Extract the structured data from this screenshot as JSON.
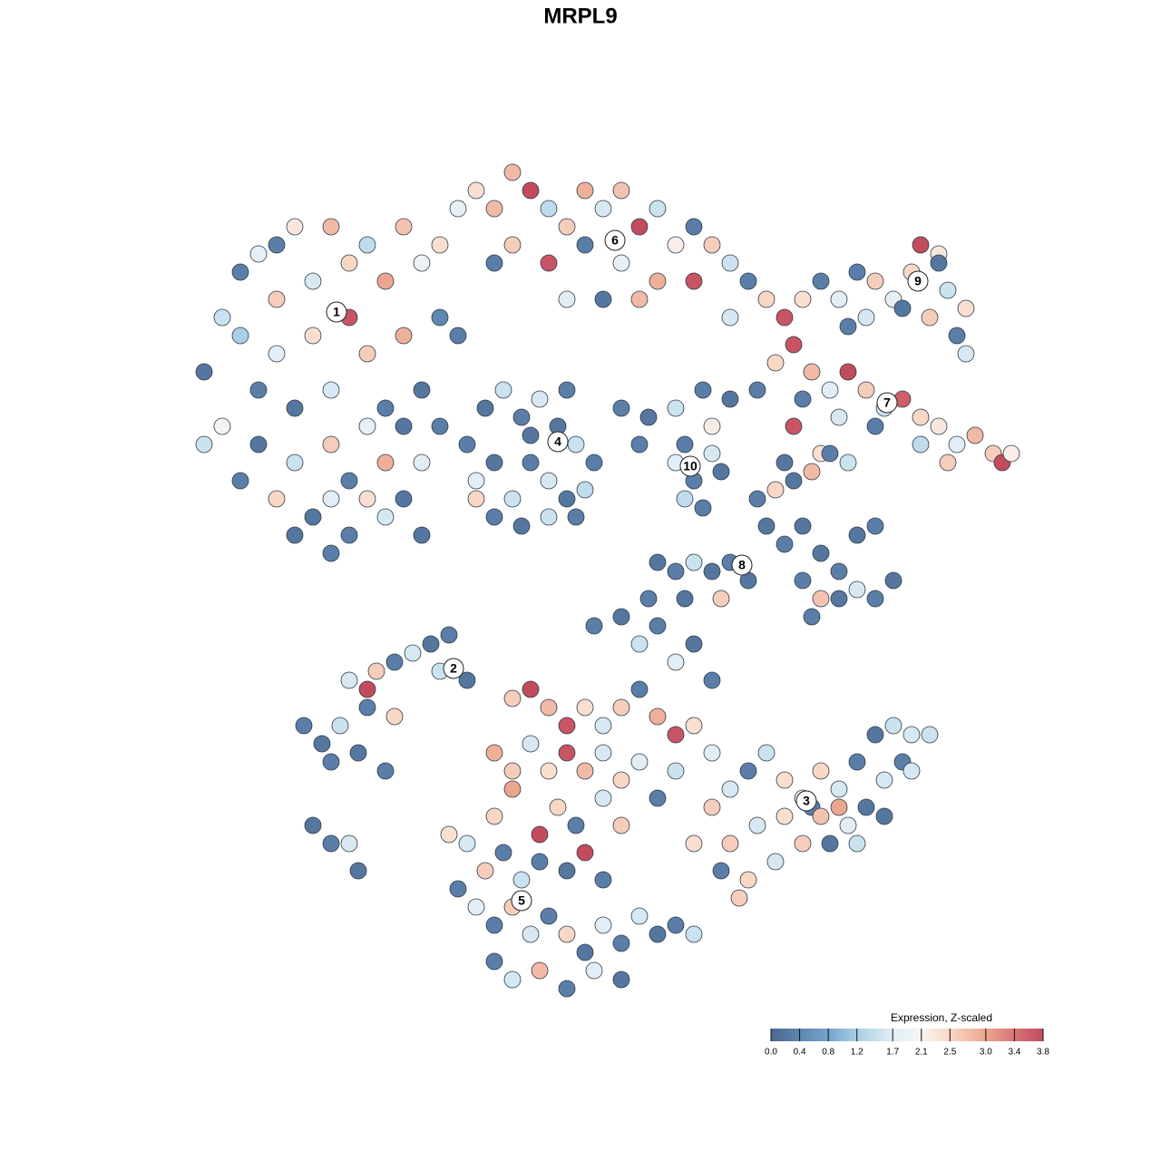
{
  "chart_data": {
    "type": "scatter",
    "title": "MRPL9",
    "xlim": [
      -51.5,
      51.5
    ],
    "ylim": [
      -48,
      48
    ],
    "x": [
      -44,
      -42,
      -40,
      -38,
      -36,
      -34,
      -32,
      -30,
      -28,
      -26,
      -24,
      -22,
      -20,
      -18,
      -40,
      -38,
      -36,
      -34,
      -32,
      -30,
      -28,
      -26,
      -24,
      -22,
      -20,
      -18,
      -16,
      -42,
      -38,
      -34,
      -30,
      -28,
      -26,
      -24,
      -22,
      -20,
      -32,
      -30,
      -28,
      -26,
      -24,
      -34,
      -30,
      -22,
      -36,
      -44,
      -40,
      -20,
      -18,
      -36,
      -14,
      -12,
      -10,
      -8,
      -6,
      -4,
      -2,
      0,
      2,
      4,
      6,
      8,
      10,
      12,
      14,
      16,
      -16,
      -10,
      -6,
      -2,
      2,
      6,
      10,
      -12,
      0,
      4,
      -4,
      14,
      18,
      20,
      22,
      24,
      26,
      28,
      30,
      32,
      34,
      35,
      37,
      38,
      40,
      39,
      36,
      33,
      29,
      27,
      40,
      37,
      19,
      21,
      23,
      25,
      27,
      29,
      31,
      33,
      35,
      37,
      39,
      41,
      43,
      44,
      45,
      38,
      35,
      30,
      26,
      22,
      21,
      17,
      20,
      24,
      -15,
      -13,
      -11,
      -9,
      -7,
      -5,
      -3,
      -1,
      -14,
      -12,
      -10,
      -8,
      -6,
      -4,
      -2,
      -12,
      -9,
      -6,
      -3,
      -8,
      -14,
      -4,
      2,
      5,
      8,
      11,
      14,
      4,
      9,
      12,
      8,
      10,
      12,
      9,
      11,
      13,
      17,
      19,
      21,
      23,
      25,
      27,
      18,
      20,
      22,
      24,
      26,
      28,
      30,
      22,
      24,
      26,
      28,
      30,
      32,
      23,
      6,
      8,
      10,
      12,
      14,
      16,
      5,
      9,
      13,
      -33,
      -31,
      -29,
      -30,
      -27,
      -26,
      -28,
      -25,
      -26,
      -23,
      -21,
      -19,
      -17,
      -18,
      -15,
      -23,
      -24,
      -32,
      -30,
      -28,
      -27,
      -10,
      -8,
      -6,
      -4,
      -2,
      0,
      2,
      4,
      6,
      8,
      10,
      -12,
      -10,
      -8,
      -6,
      -4,
      -2,
      0,
      2,
      4,
      6,
      8,
      -12,
      -10,
      -7,
      -5,
      -3,
      0,
      2,
      -1,
      2,
      4,
      6,
      8,
      10,
      12,
      -15,
      -13,
      -11,
      -9,
      -7,
      -4,
      -2,
      0,
      -14,
      -12,
      -10,
      -8,
      -6,
      -4,
      -2,
      0,
      2,
      4,
      6,
      8,
      10,
      -12,
      -10,
      -7,
      -4,
      -1,
      2,
      -16,
      -17,
      12,
      14,
      16,
      18,
      20,
      22,
      24,
      26,
      28,
      30,
      32,
      34,
      36,
      33,
      31,
      29,
      27,
      25,
      22,
      19,
      16,
      13,
      14,
      17,
      20,
      23,
      26,
      28,
      24,
      15,
      12,
      10,
      31,
      34
    ],
    "y": [
      22,
      28,
      33,
      35,
      30,
      38,
      32,
      38,
      34,
      36,
      32,
      38,
      34,
      36,
      26,
      20,
      24,
      18,
      26,
      20,
      28,
      24,
      18,
      26,
      20,
      28,
      26,
      16,
      14,
      12,
      14,
      10,
      16,
      12,
      16,
      12,
      6,
      8,
      4,
      8,
      6,
      4,
      2,
      8,
      8,
      14,
      10,
      4,
      16,
      36,
      42,
      40,
      44,
      42,
      40,
      38,
      42,
      40,
      42,
      38,
      40,
      36,
      38,
      36,
      34,
      32,
      40,
      36,
      34,
      36,
      34,
      32,
      32,
      34,
      30,
      30,
      30,
      28,
      30,
      28,
      30,
      32,
      30,
      33,
      32,
      30,
      33,
      36,
      35,
      31,
      29,
      26,
      28,
      29,
      28,
      27,
      24,
      34,
      23,
      25,
      22,
      20,
      22,
      20,
      18,
      19,
      17,
      16,
      14,
      15,
      13,
      12,
      13,
      12,
      14,
      16,
      17,
      19,
      16,
      20,
      12,
      13,
      14,
      18,
      20,
      17,
      19,
      16,
      14,
      12,
      10,
      12,
      8,
      12,
      10,
      8,
      9,
      6,
      5,
      6,
      6,
      15,
      8,
      20,
      18,
      17,
      18,
      20,
      19,
      14,
      14,
      16,
      12,
      10,
      13,
      8,
      7,
      11,
      8,
      9,
      10,
      11,
      13,
      12,
      5,
      3,
      5,
      2,
      0,
      4,
      5,
      -1,
      -3,
      -3,
      -2,
      -3,
      -1,
      -5,
      1,
      0,
      1,
      0,
      1,
      -1,
      -3,
      -3,
      -3,
      -17,
      -19,
      -17,
      -21,
      -20,
      -15,
      -12,
      -11,
      -13,
      -10,
      -9,
      -8,
      -7,
      -11,
      -12,
      -16,
      -22,
      -28,
      -30,
      -30,
      -33,
      -14,
      -13,
      -15,
      -17,
      -15,
      -17,
      -15,
      -13,
      -16,
      -18,
      -17,
      -20,
      -22,
      -19,
      -22,
      -20,
      -22,
      -20,
      -23,
      -21,
      -25,
      -22,
      -27,
      -24,
      -29,
      -26,
      -28,
      -25,
      -28,
      -6,
      -5,
      -8,
      -6,
      -10,
      -8,
      -12,
      -30,
      -33,
      -31,
      -34,
      -32,
      -33,
      -31,
      -34,
      -37,
      -39,
      -37,
      -40,
      -38,
      -40,
      -42,
      -39,
      -41,
      -38,
      -40,
      -39,
      -40,
      -43,
      -45,
      -44,
      -46,
      -44,
      -45,
      -35,
      -29,
      -26,
      -24,
      -22,
      -20,
      -23,
      -25,
      -22,
      -24,
      -21,
      -18,
      -17,
      -18,
      -18,
      -21,
      -23,
      -26,
      -28,
      -30,
      -30,
      -32,
      -34,
      -33,
      -30,
      -28,
      -27,
      -26,
      -26,
      -30,
      -27,
      -36,
      -20,
      -30,
      -27,
      -22
    ],
    "values": [
      0.2,
      1.5,
      0.3,
      1.8,
      2.6,
      2.3,
      1.6,
      2.8,
      2.5,
      1.4,
      3.0,
      2.7,
      1.9,
      2.4,
      1.2,
      0.3,
      1.7,
      0.2,
      2.4,
      1.6,
      3.7,
      2.6,
      0.3,
      2.9,
      0.2,
      0.4,
      0.3,
      2.0,
      0.2,
      1.5,
      2.6,
      0.3,
      1.8,
      2.9,
      0.2,
      1.7,
      0.2,
      1.7,
      0.3,
      2.4,
      1.6,
      0.2,
      0.3,
      0.2,
      2.5,
      1.5,
      0.3,
      0.2,
      0.3,
      0.3,
      2.4,
      2.8,
      2.8,
      3.8,
      1.4,
      2.6,
      2.9,
      1.6,
      2.7,
      3.8,
      1.5,
      2.2,
      0.3,
      2.6,
      1.5,
      0.3,
      1.8,
      2.6,
      3.7,
      0.3,
      1.8,
      2.9,
      3.7,
      0.3,
      0.2,
      2.8,
      1.7,
      1.6,
      2.5,
      3.7,
      2.4,
      0.3,
      1.7,
      0.3,
      2.6,
      1.8,
      2.5,
      3.8,
      2.3,
      1.5,
      2.4,
      0.3,
      2.6,
      0.2,
      1.6,
      0.3,
      1.6,
      0.2,
      2.5,
      3.7,
      2.8,
      1.7,
      3.8,
      2.6,
      1.5,
      3.6,
      2.5,
      2.3,
      1.7,
      2.8,
      2.6,
      3.8,
      2.2,
      2.6,
      1.4,
      0.3,
      1.6,
      0.3,
      3.7,
      0.3,
      0.2,
      2.4,
      0.3,
      0.2,
      1.5,
      0.3,
      1.6,
      0.2,
      1.5,
      0.3,
      1.7,
      0.2,
      1.5,
      0.3,
      1.6,
      0.2,
      1.4,
      0.3,
      0.2,
      1.5,
      0.3,
      0.2,
      2.5,
      0.3,
      0.3,
      0.2,
      1.5,
      0.3,
      0.2,
      0.3,
      0.3,
      2.2,
      1.7,
      0.3,
      1.6,
      1.4,
      0.3,
      0.2,
      0.3,
      2.5,
      0.2,
      2.8,
      0.3,
      1.5,
      0.2,
      0.3,
      0.2,
      0.2,
      0.3,
      0.2,
      0.3,
      0.3,
      2.7,
      0.2,
      1.6,
      0.3,
      0.2,
      0.3,
      0.2,
      0.3,
      1.5,
      0.2,
      0.3,
      0.2,
      0.3,
      0.2,
      2.6,
      0.3,
      0.2,
      1.5,
      0.3,
      0.2,
      0.3,
      1.6,
      2.6,
      3.8,
      0.3,
      1.6,
      0.2,
      0.3,
      1.5,
      0.2,
      2.5,
      0.3,
      0.2,
      0.3,
      1.6,
      0.2,
      2.6,
      3.8,
      2.8,
      3.7,
      2.4,
      1.6,
      2.6,
      0.3,
      2.9,
      3.7,
      2.4,
      2.9,
      2.6,
      1.6,
      2.4,
      3.7,
      2.8,
      1.6,
      2.5,
      1.7,
      0.3,
      1.5,
      2.5,
      3.0,
      3.8,
      2.5,
      0.3,
      1.6,
      2.6,
      0.3,
      0.2,
      1.5,
      0.3,
      1.7,
      0.2,
      0.3,
      1.6,
      2.6,
      0.3,
      1.5,
      0.3,
      0.2,
      3.8,
      0.3,
      1.7,
      0.3,
      2.6,
      1.6,
      0.3,
      2.5,
      0.2,
      1.7,
      0.3,
      1.6,
      0.2,
      0.3,
      1.5,
      0.3,
      1.6,
      2.8,
      0.3,
      1.7,
      0.2,
      0.3,
      2.4,
      2.6,
      1.6,
      0.3,
      1.5,
      2.4,
      1.7,
      2.5,
      1.6,
      0.3,
      0.2,
      1.5,
      1.6,
      1.5,
      0.3,
      1.6,
      0.2,
      1.7,
      0.2,
      2.6,
      1.6,
      2.5,
      0.3,
      2.6,
      1.6,
      2.4,
      0.3,
      3.0,
      1.5,
      2.7,
      2.6,
      1.7,
      2.4,
      0.2,
      1.6
    ],
    "annotations": [
      {
        "text": "1",
        "x": -29.4,
        "y": 28.6
      },
      {
        "text": "2",
        "x": -16.5,
        "y": -10.7
      },
      {
        "text": "3",
        "x": 22.4,
        "y": -25.3
      },
      {
        "text": "4",
        "x": -5,
        "y": 14.3
      },
      {
        "text": "5",
        "x": -9,
        "y": -36.3
      },
      {
        "text": "6",
        "x": 1.3,
        "y": 36.5
      },
      {
        "text": "7",
        "x": 31.3,
        "y": 18.6
      },
      {
        "text": "8",
        "x": 15.3,
        "y": 0.7
      },
      {
        "text": "9",
        "x": 34.7,
        "y": 32
      },
      {
        "text": "10",
        "x": 9.6,
        "y": 11.6
      }
    ],
    "colorbar": {
      "label": "Expression, Z-scaled",
      "clim": [
        0,
        3.8
      ],
      "ticks": [
        {
          "value": 0,
          "label": "0.0"
        },
        0.4,
        0.8,
        1.2,
        1.7,
        2.1,
        2.5,
        {
          "value": 3,
          "label": "3.0"
        },
        3.4,
        3.8
      ],
      "colorscale": [
        [
          0,
          "#4a6890"
        ],
        [
          0.8,
          "#74a3cc"
        ],
        [
          1.2,
          "#a9cfe4"
        ],
        [
          1.7,
          "#e2eef6"
        ],
        [
          2.1,
          "#f7f5f2"
        ],
        [
          2.5,
          "#f9d7c5"
        ],
        [
          3.0,
          "#eca68f"
        ],
        [
          3.4,
          "#d97478"
        ],
        [
          3.8,
          "#c24b5c"
        ]
      ]
    }
  }
}
